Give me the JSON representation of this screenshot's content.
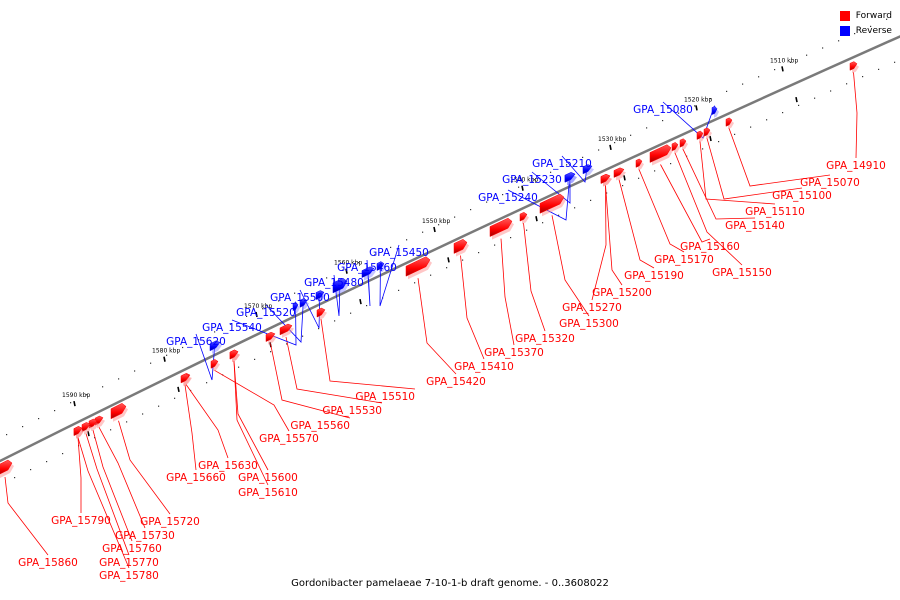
{
  "caption": "Gordonibacter pamelaeae 7-10-1-b draft genome. - 0..3608022",
  "legend": {
    "forward": {
      "label": "Forward",
      "color": "#ff0000"
    },
    "reverse": {
      "label": "Reverse",
      "color": "#0000ff"
    }
  },
  "colors": {
    "forward": "#ff0000",
    "reverse": "#0000ff",
    "backbone": "#808080",
    "text": "#000000"
  },
  "kbp_labels": [
    "1510 kbp",
    "1520 kbp",
    "1530 kbp",
    "1540 kbp",
    "1550 kbp",
    "1560 kbp",
    "1570 kbp",
    "1580 kbp",
    "1590 kbp"
  ],
  "genes": [
    {
      "name": "GPA_14910",
      "strand": "forward"
    },
    {
      "name": "GPA_15070",
      "strand": "forward"
    },
    {
      "name": "GPA_15080",
      "strand": "reverse"
    },
    {
      "name": "GPA_15100",
      "strand": "forward"
    },
    {
      "name": "GPA_15110",
      "strand": "forward"
    },
    {
      "name": "GPA_15140",
      "strand": "forward"
    },
    {
      "name": "GPA_15150",
      "strand": "forward"
    },
    {
      "name": "GPA_15160",
      "strand": "forward"
    },
    {
      "name": "GPA_15170",
      "strand": "forward"
    },
    {
      "name": "GPA_15190",
      "strand": "forward"
    },
    {
      "name": "GPA_15200",
      "strand": "forward"
    },
    {
      "name": "GPA_15210",
      "strand": "reverse"
    },
    {
      "name": "GPA_15230",
      "strand": "reverse"
    },
    {
      "name": "GPA_15240",
      "strand": "reverse"
    },
    {
      "name": "GPA_15270",
      "strand": "forward"
    },
    {
      "name": "GPA_15300",
      "strand": "forward"
    },
    {
      "name": "GPA_15320",
      "strand": "forward"
    },
    {
      "name": "GPA_15370",
      "strand": "forward"
    },
    {
      "name": "GPA_15410",
      "strand": "forward"
    },
    {
      "name": "GPA_15420",
      "strand": "forward"
    },
    {
      "name": "GPA_15450",
      "strand": "reverse"
    },
    {
      "name": "GPA_15460",
      "strand": "reverse"
    },
    {
      "name": "GPA_15480",
      "strand": "reverse"
    },
    {
      "name": "GPA_15500",
      "strand": "reverse"
    },
    {
      "name": "GPA_15510",
      "strand": "forward"
    },
    {
      "name": "GPA_15520",
      "strand": "reverse"
    },
    {
      "name": "GPA_15530",
      "strand": "forward"
    },
    {
      "name": "GPA_15540",
      "strand": "reverse"
    },
    {
      "name": "GPA_15560",
      "strand": "forward"
    },
    {
      "name": "GPA_15570",
      "strand": "forward"
    },
    {
      "name": "GPA_15600",
      "strand": "forward"
    },
    {
      "name": "GPA_15610",
      "strand": "forward"
    },
    {
      "name": "GPA_15620",
      "strand": "reverse"
    },
    {
      "name": "GPA_15630",
      "strand": "forward"
    },
    {
      "name": "GPA_15660",
      "strand": "forward"
    },
    {
      "name": "GPA_15720",
      "strand": "forward"
    },
    {
      "name": "GPA_15730",
      "strand": "forward"
    },
    {
      "name": "GPA_15760",
      "strand": "forward"
    },
    {
      "name": "GPA_15770",
      "strand": "forward"
    },
    {
      "name": "GPA_15780",
      "strand": "forward"
    },
    {
      "name": "GPA_15790",
      "strand": "forward"
    },
    {
      "name": "GPA_15860",
      "strand": "forward"
    }
  ]
}
